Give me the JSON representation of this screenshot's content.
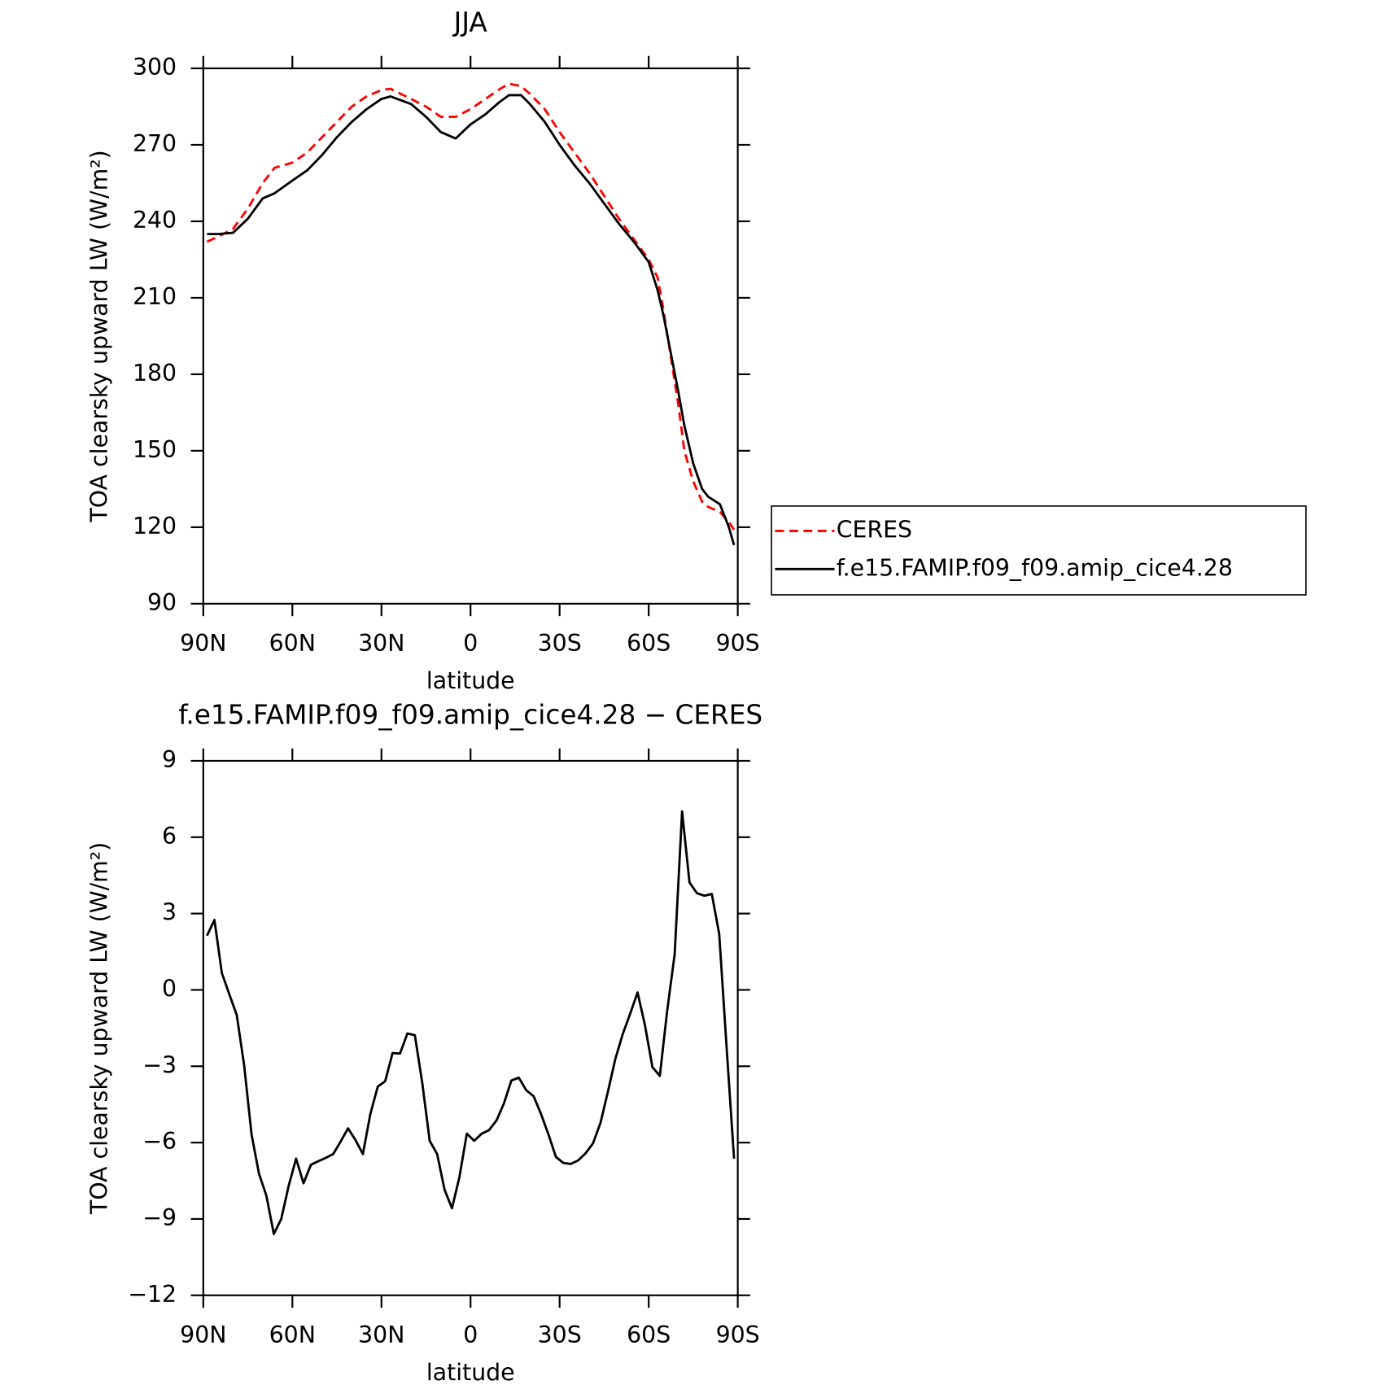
{
  "chart_data": [
    {
      "type": "line",
      "title": "JJA",
      "xlabel": "latitude",
      "ylabel": "TOA clearsky upward LW (W/m²)",
      "x": [
        88.75,
        85,
        80,
        75,
        70,
        66,
        60,
        55,
        50,
        45,
        40,
        35,
        30,
        27,
        20,
        15,
        10,
        5,
        0,
        -5,
        -10,
        -13,
        -17,
        -20,
        -25,
        -30,
        -35,
        -40,
        -45,
        -50,
        -55,
        -60,
        -63,
        -65,
        -70,
        -72,
        -75,
        -78,
        -80,
        -84,
        -87,
        -88.75
      ],
      "series": [
        {
          "name": "CERES",
          "color": "#ff0000",
          "dash": true,
          "values": [
            232,
            234,
            237,
            245,
            255,
            261,
            263,
            267,
            273,
            279,
            285,
            289,
            291.5,
            292,
            288,
            285,
            281,
            281,
            284,
            288,
            292,
            294,
            293,
            290,
            284,
            275,
            267,
            259,
            250,
            241,
            233,
            225,
            218,
            205,
            168,
            150,
            138,
            130,
            128,
            126,
            122,
            119
          ]
        },
        {
          "name": "f.e15.FAMIP.f09_f09.amip_cice4.28",
          "color": "#000000",
          "dash": false,
          "values": [
            235,
            235,
            235.5,
            241,
            249,
            251,
            256,
            260,
            266,
            273,
            279,
            284,
            288,
            289,
            286,
            281,
            275,
            272.5,
            278,
            282,
            287,
            289.5,
            289.5,
            286,
            279,
            270,
            262,
            255,
            247,
            239,
            232,
            224,
            213,
            203,
            173,
            160,
            145,
            135,
            132,
            129,
            120,
            113
          ]
        }
      ],
      "xlim": [
        90,
        -90
      ],
      "xticks": [
        {
          "value": 90,
          "label": "90N"
        },
        {
          "value": 60,
          "label": "60N"
        },
        {
          "value": 30,
          "label": "30N"
        },
        0,
        {
          "value": -30,
          "label": "30S"
        },
        {
          "value": -60,
          "label": "60S"
        },
        {
          "value": -90,
          "label": "90S"
        }
      ],
      "ylim": [
        90,
        300
      ],
      "yticks": [
        90,
        120,
        150,
        180,
        210,
        240,
        270,
        300
      ],
      "legend": "right"
    },
    {
      "type": "line",
      "title": "f.e15.FAMIP.f09_f09.amip_cice4.28 − CERES",
      "xlabel": "latitude",
      "ylabel": "TOA clearsky upward LW (W/m²)",
      "x": [
        88.75,
        86.25,
        83.75,
        81.25,
        78.75,
        76.25,
        73.75,
        71.25,
        68.75,
        66.25,
        63.75,
        61.25,
        58.75,
        56.25,
        53.75,
        51.25,
        48.75,
        46.25,
        43.75,
        41.25,
        38.75,
        36.25,
        33.75,
        31.25,
        28.75,
        26.25,
        23.75,
        21.25,
        18.75,
        16.25,
        13.75,
        11.25,
        8.75,
        6.25,
        3.75,
        1.25,
        -1.25,
        -3.75,
        -6.25,
        -8.75,
        -11.25,
        -13.75,
        -16.25,
        -18.75,
        -21.25,
        -23.75,
        -26.25,
        -28.75,
        -31.25,
        -33.75,
        -36.25,
        -38.75,
        -41.25,
        -43.75,
        -46.25,
        -48.75,
        -51.25,
        -53.75,
        -56.25,
        -58.75,
        -61.25,
        -63.75,
        -66.25,
        -68.75,
        -71.25,
        -73.75,
        -76.25,
        -78.75,
        -81.25,
        -83.75,
        -86.25,
        -88.75
      ],
      "values": [
        2.13,
        2.75,
        0.66,
        -0.17,
        -0.98,
        -2.96,
        -5.68,
        -7.22,
        -8.09,
        -9.59,
        -9.0,
        -7.7,
        -6.63,
        -7.6,
        -6.87,
        -6.73,
        -6.6,
        -6.45,
        -5.96,
        -5.44,
        -5.9,
        -6.45,
        -4.88,
        -3.8,
        -3.59,
        -2.48,
        -2.5,
        -1.71,
        -1.78,
        -3.66,
        -5.93,
        -6.45,
        -7.85,
        -8.58,
        -7.36,
        -5.65,
        -5.93,
        -5.65,
        -5.51,
        -5.13,
        -4.46,
        -3.56,
        -3.45,
        -3.94,
        -4.18,
        -4.88,
        -5.68,
        -6.56,
        -6.8,
        -6.84,
        -6.7,
        -6.42,
        -6.03,
        -5.23,
        -4.01,
        -2.72,
        -1.74,
        -0.94,
        -0.1,
        -1.39,
        -3.03,
        -3.38,
        -0.8,
        1.4,
        7.01,
        4.22,
        3.8,
        3.7,
        3.77,
        2.2,
        -2.27,
        -6.63
      ],
      "color": "#000000",
      "xlim": [
        90,
        -90
      ],
      "xticks": [
        {
          "value": 90,
          "label": "90N"
        },
        {
          "value": 60,
          "label": "60N"
        },
        {
          "value": 30,
          "label": "30N"
        },
        0,
        {
          "value": -30,
          "label": "30S"
        },
        {
          "value": -60,
          "label": "60S"
        },
        {
          "value": -90,
          "label": "90S"
        }
      ],
      "ylim": [
        -12,
        9
      ],
      "yticks": [
        {
          "value": -12,
          "label": "−12"
        },
        {
          "value": -9,
          "label": "−9"
        },
        {
          "value": -6,
          "label": "−6"
        },
        {
          "value": -3,
          "label": "−3"
        },
        0,
        3,
        6,
        9
      ]
    }
  ]
}
